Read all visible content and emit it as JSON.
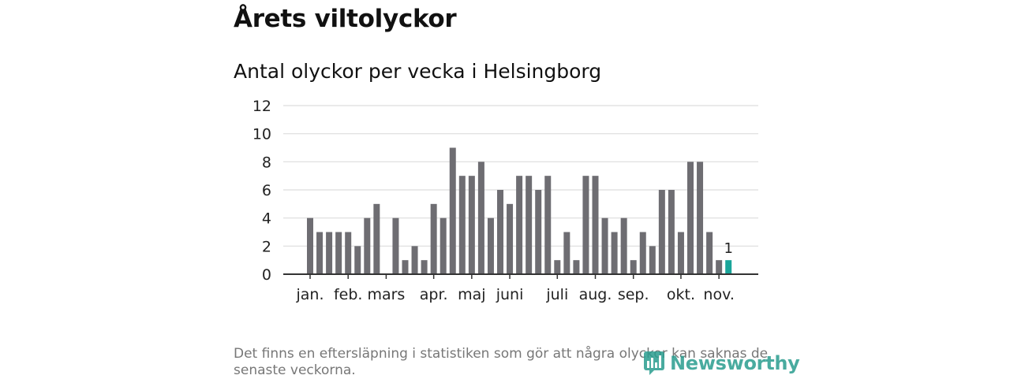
{
  "header": {
    "title": "Årets viltolyckor",
    "subtitle": "Antal olyckor per vecka i Helsingborg"
  },
  "chart_data": {
    "type": "bar",
    "title": "Antal olyckor per vecka i Helsingborg",
    "xlabel": "",
    "ylabel": "",
    "ylim": [
      0,
      12
    ],
    "yticks": [
      0,
      2,
      4,
      6,
      8,
      10,
      12
    ],
    "grid": true,
    "values": [
      4,
      3,
      3,
      3,
      3,
      2,
      4,
      5,
      0,
      4,
      1,
      2,
      1,
      5,
      4,
      9,
      7,
      7,
      8,
      4,
      6,
      5,
      7,
      7,
      6,
      7,
      1,
      3,
      1,
      7,
      7,
      4,
      3,
      4,
      1,
      3,
      2,
      6,
      6,
      3,
      8,
      8,
      3,
      1,
      1
    ],
    "highlight_index": 44,
    "highlight_label": "1",
    "month_labels": [
      {
        "label": "jan.",
        "week": 1
      },
      {
        "label": "feb.",
        "week": 5
      },
      {
        "label": "mars",
        "week": 9
      },
      {
        "label": "apr.",
        "week": 14
      },
      {
        "label": "maj",
        "week": 18
      },
      {
        "label": "juni",
        "week": 22
      },
      {
        "label": "juli",
        "week": 27
      },
      {
        "label": "aug.",
        "week": 31
      },
      {
        "label": "sep.",
        "week": 35
      },
      {
        "label": "okt.",
        "week": 40
      },
      {
        "label": "nov.",
        "week": 44
      }
    ],
    "colors": {
      "bar": "#6e6d72",
      "highlight": "#1aa59a",
      "grid": "#dddddd",
      "axis": "#333333"
    }
  },
  "footer": {
    "note": "Det finns en eftersläpning i statistiken som gör att några olyckor kan saknas de senaste veckorna.",
    "brand": "Newsworthy",
    "brand_icon": "newsworthy-logo-icon"
  }
}
